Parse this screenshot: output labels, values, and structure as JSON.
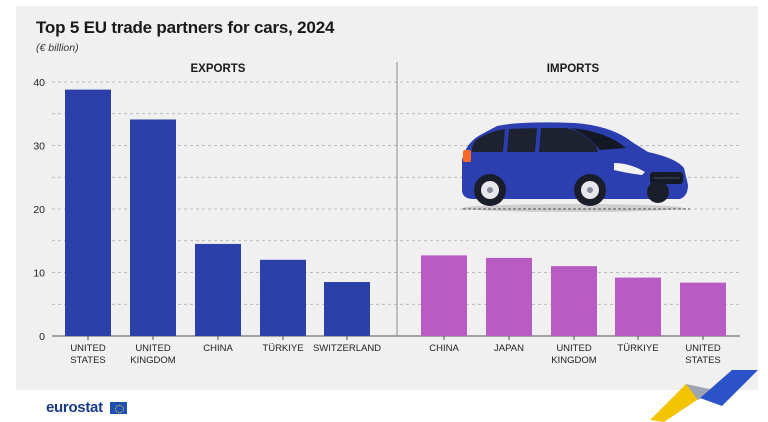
{
  "title": "Top 5 EU trade partners for cars, 2024",
  "subtitle": "(€ billion)",
  "footer": {
    "brand": "eurostat"
  },
  "colors": {
    "exports": "#2b40a8",
    "imports": "#b85cc4",
    "grid": "#a8a8a8",
    "axis": "#555555"
  },
  "chart_data": [
    {
      "type": "bar",
      "panel_title": "EXPORTS",
      "categories": [
        [
          "UNITED",
          "STATES"
        ],
        [
          "UNITED",
          "KINGDOM"
        ],
        [
          "CHINA"
        ],
        [
          "TÜRKIYE"
        ],
        [
          "SWITZERLAND"
        ]
      ],
      "values": [
        38.8,
        34.1,
        14.5,
        12.0,
        8.5
      ],
      "ylim": [
        0,
        40
      ],
      "yticks": [
        0,
        10,
        20,
        30,
        40
      ],
      "grid": true
    },
    {
      "type": "bar",
      "panel_title": "IMPORTS",
      "categories": [
        [
          "CHINA"
        ],
        [
          "JAPAN"
        ],
        [
          "UNITED",
          "KINGDOM"
        ],
        [
          "TÜRKIYE"
        ],
        [
          "UNITED",
          "STATES"
        ]
      ],
      "values": [
        12.7,
        12.3,
        11.0,
        9.2,
        8.4
      ],
      "ylim": [
        0,
        40
      ],
      "grid": true
    }
  ]
}
